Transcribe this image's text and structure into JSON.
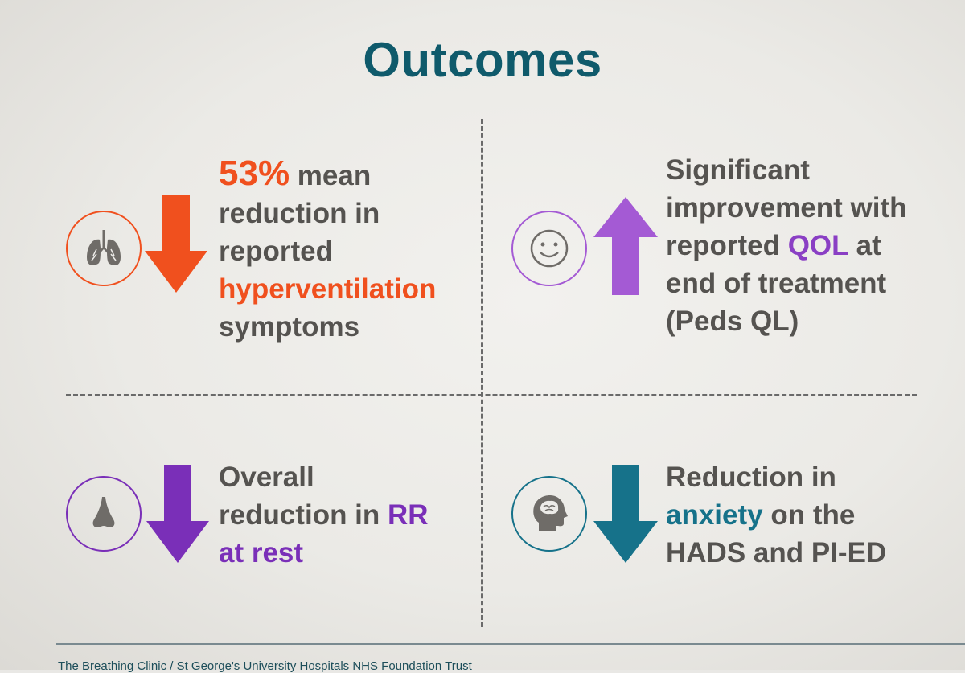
{
  "title": "Outcomes",
  "quadrants": {
    "top_left": {
      "icon": "lungs-icon",
      "arrow": "down",
      "color": "#f0501e",
      "highlight_value": "53%",
      "line1_rest": " mean",
      "line2": "reduction in",
      "line3": "reported",
      "line4_highlight": "hyperventilation",
      "line5": "symptoms"
    },
    "top_right": {
      "icon": "smiley-icon",
      "arrow": "up",
      "color": "#a45ad4",
      "line1": "Significant",
      "line2": "improvement with",
      "line3_pre": "reported ",
      "line3_highlight": "QOL",
      "line3_post": " at",
      "line4": "end of treatment",
      "line5": "(Peds QL)"
    },
    "bottom_left": {
      "icon": "nose-icon",
      "arrow": "down",
      "color": "#7a2fb8",
      "line1": "Overall",
      "line2_pre": "reduction in ",
      "line2_highlight": "RR",
      "line3_highlight": "at rest"
    },
    "bottom_right": {
      "icon": "head-brain-icon",
      "arrow": "down",
      "color": "#16728a",
      "line1": "Reduction in",
      "line2_highlight": "anxiety",
      "line2_post": " on the",
      "line3": "HADS and PI-ED"
    }
  },
  "footer": {
    "text": "The Breathing Clinic / St George's University Hospitals NHS Foundation Trust"
  }
}
